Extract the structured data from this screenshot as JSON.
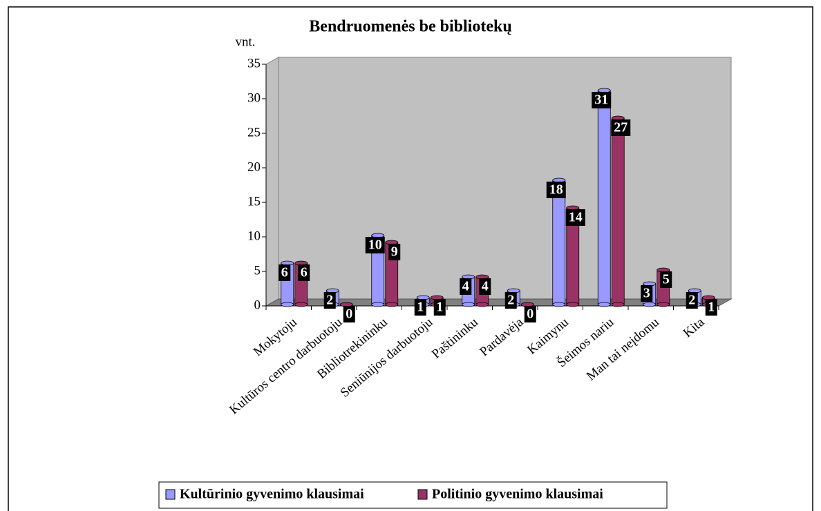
{
  "chart_data": {
    "type": "bar3d",
    "title": "Bendruomenės be bibliotekų",
    "y_label": "vnt.",
    "categories": [
      "Mokytoju",
      "Kultūros centro darbuotoju",
      "Bibliotrekininku",
      "Seniūnijos darbuotoju",
      "Paštininku",
      "Pardavėja",
      "Kaimynu",
      "Šeimos nariu",
      "Man tai neįdomu",
      "Kita"
    ],
    "series": [
      {
        "name": "Kultūrinio gyvenimo klausimai",
        "color": "#9999ff",
        "values": [
          6,
          2,
          10,
          1,
          4,
          2,
          18,
          31,
          3,
          2
        ]
      },
      {
        "name": "Politinio gyvenimo klausimai",
        "color": "#993366",
        "values": [
          6,
          0,
          9,
          1,
          4,
          0,
          14,
          27,
          5,
          1
        ]
      }
    ],
    "ylim": [
      0,
      35
    ],
    "yticks": [
      0,
      5,
      10,
      15,
      20,
      25,
      30,
      35
    ],
    "grid": false,
    "legend": "bottom"
  }
}
